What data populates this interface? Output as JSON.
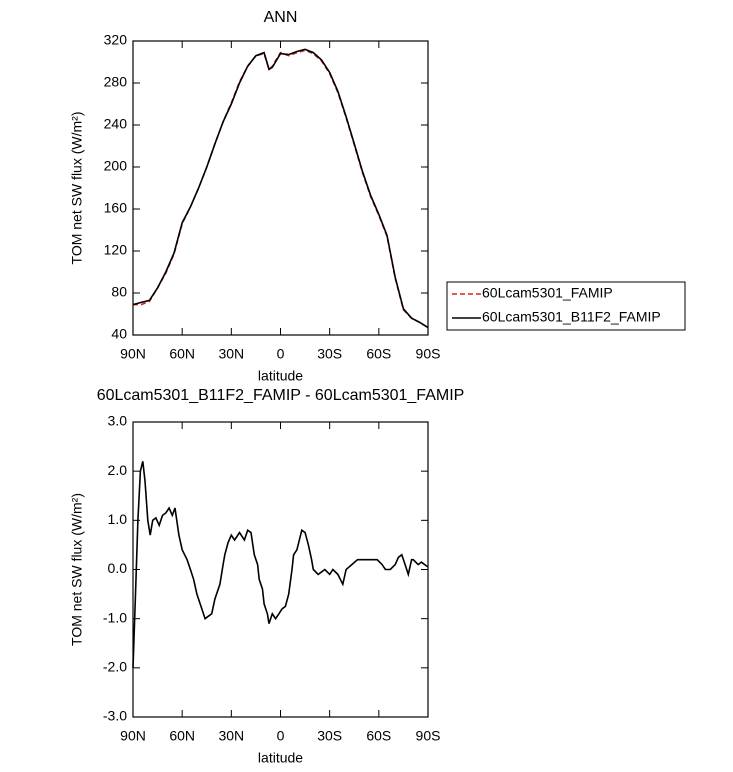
{
  "chart_data": [
    {
      "type": "line",
      "title": "ANN",
      "xlabel": "latitude",
      "ylabel": "TOM net SW flux (W/m²)",
      "x": [
        90,
        85,
        80,
        75,
        70,
        65,
        60,
        55,
        50,
        45,
        40,
        35,
        30,
        25,
        20,
        15,
        10,
        7,
        5,
        0,
        -5,
        -10,
        -15,
        -20,
        -25,
        -30,
        -35,
        -40,
        -45,
        -50,
        -55,
        -60,
        -65,
        -70,
        -75,
        -80,
        -85,
        -90
      ],
      "series": [
        {
          "name": "60Lcam5301_FAMIP",
          "color": "#e0201a",
          "dash": true,
          "values": [
            69,
            69,
            72,
            85,
            99,
            117,
            146,
            162,
            180,
            200,
            222,
            243,
            261,
            281,
            296,
            306,
            308,
            293,
            296,
            309,
            306,
            309,
            311,
            308,
            301,
            289,
            271,
            247,
            221,
            195,
            172,
            154,
            134,
            94,
            64,
            56,
            52,
            47
          ]
        },
        {
          "name": "60Lcam5301_B11F2_FAMIP",
          "color": "#000000",
          "dash": false,
          "values": [
            69,
            71,
            73,
            85,
            100,
            118,
            147,
            162,
            180,
            200,
            222,
            243,
            260,
            280,
            296,
            306,
            309,
            293,
            295,
            308,
            307,
            310,
            312,
            309,
            302,
            290,
            272,
            248,
            222,
            196,
            173,
            155,
            135,
            95,
            65,
            56,
            52,
            47
          ]
        }
      ],
      "xlim": [
        90,
        -90
      ],
      "xticks": [
        {
          "value": 90,
          "label": "90N"
        },
        {
          "value": 60,
          "label": "60N"
        },
        {
          "value": 30,
          "label": "30N"
        },
        0,
        {
          "value": -30,
          "label": "30S"
        },
        {
          "value": -60,
          "label": "60S"
        },
        {
          "value": -90,
          "label": "90S"
        }
      ],
      "ylim": [
        40,
        320
      ],
      "yticks": [
        40,
        80,
        120,
        160,
        200,
        240,
        280,
        320
      ],
      "legend": "right"
    },
    {
      "type": "line",
      "title": "60Lcam5301_B11F2_FAMIP - 60Lcam5301_FAMIP",
      "xlabel": "latitude",
      "ylabel": "TOM net SW flux (W/m²)",
      "x": [
        90,
        88.5,
        87,
        85.5,
        84,
        82.7,
        81,
        79.5,
        78,
        76,
        74,
        72,
        70,
        68,
        66,
        64.4,
        62,
        60,
        57,
        55,
        53,
        51,
        48,
        46,
        44,
        42,
        40,
        37,
        35,
        34,
        32,
        30,
        28,
        25,
        22,
        20,
        18,
        16,
        14,
        13,
        11,
        10,
        8,
        7,
        5,
        3,
        1,
        -1,
        -3,
        -5,
        -7,
        -8,
        -10,
        -13,
        -15,
        -17,
        -19,
        -20,
        -23,
        -27,
        -30,
        -32,
        -35,
        -38,
        -40,
        -43.5,
        -47,
        -51,
        -55,
        -59,
        -62,
        -64,
        -67,
        -70,
        -72,
        -74,
        -76,
        -78,
        -80,
        -81,
        -84,
        -86,
        -88,
        -90
      ],
      "series": [
        {
          "name": "60Lcam5301_B11F2_FAMIP - 60Lcam5301_FAMIP",
          "color": "#000000",
          "dash": false,
          "values": [
            -2.0,
            -0.5,
            1.0,
            2.0,
            2.2,
            1.8,
            1.0,
            0.7,
            1.0,
            1.05,
            0.9,
            1.1,
            1.15,
            1.25,
            1.1,
            1.25,
            0.7,
            0.4,
            0.2,
            0.0,
            -0.2,
            -0.5,
            -0.8,
            -1.0,
            -0.95,
            -0.9,
            -0.6,
            -0.3,
            0.1,
            0.3,
            0.55,
            0.7,
            0.6,
            0.75,
            0.6,
            0.8,
            0.75,
            0.3,
            0.1,
            -0.2,
            -0.4,
            -0.7,
            -0.9,
            -1.1,
            -0.9,
            -1.0,
            -0.9,
            -0.8,
            -0.75,
            -0.5,
            0.0,
            0.3,
            0.4,
            0.8,
            0.75,
            0.5,
            0.2,
            0.0,
            -0.1,
            0.0,
            -0.1,
            0.0,
            -0.1,
            -0.3,
            0.0,
            0.1,
            0.2,
            0.2,
            0.2,
            0.2,
            0.1,
            0.0,
            0.0,
            0.1,
            0.25,
            0.3,
            0.1,
            -0.1,
            0.2,
            0.2,
            0.1,
            0.15,
            0.1,
            0.05
          ]
        }
      ],
      "xlim": [
        90,
        -90
      ],
      "xticks": [
        {
          "value": 90,
          "label": "90N"
        },
        {
          "value": 60,
          "label": "60N"
        },
        {
          "value": 30,
          "label": "30N"
        },
        0,
        {
          "value": -30,
          "label": "30S"
        },
        {
          "value": -60,
          "label": "60S"
        },
        {
          "value": -90,
          "label": "90S"
        }
      ],
      "ylim": [
        -3,
        3
      ],
      "yticks": [
        {
          "value": -3,
          "label": "-3.0"
        },
        {
          "value": -2,
          "label": "-2.0"
        },
        {
          "value": -1,
          "label": "-1.0"
        },
        {
          "value": 0,
          "label": "0.0"
        },
        {
          "value": 1,
          "label": "1.0"
        },
        {
          "value": 2,
          "label": "2.0"
        },
        {
          "value": 3,
          "label": "3.0"
        }
      ]
    }
  ]
}
